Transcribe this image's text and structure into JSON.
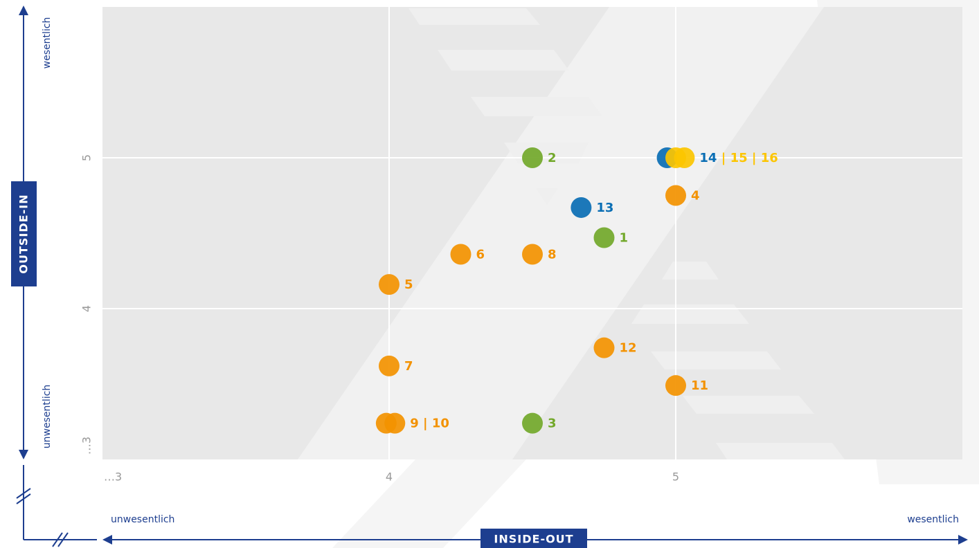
{
  "chart_data": {
    "type": "scatter",
    "x_label": "INSIDE-OUT",
    "y_label": "OUTSIDE-IN",
    "x_low": "unwesentlich",
    "x_high": "wesentlich",
    "y_low": "unwesentlich",
    "y_high": "wesentlich",
    "xlim": [
      3,
      6
    ],
    "ylim": [
      3,
      6
    ],
    "xticks": [
      {
        "value": 3,
        "label": "…3"
      },
      4,
      5
    ],
    "yticks": [
      {
        "value": 3,
        "label": "…3"
      },
      4,
      5
    ],
    "grid": true,
    "groups": [
      {
        "label_parts": [
          {
            "text": "1",
            "color": "#72a82a"
          }
        ],
        "points": [
          {
            "x": 4.75,
            "y": 4.47,
            "color": "#72a82a"
          }
        ]
      },
      {
        "label_parts": [
          {
            "text": "2",
            "color": "#72a82a"
          }
        ],
        "points": [
          {
            "x": 4.5,
            "y": 5.0,
            "color": "#72a82a"
          }
        ]
      },
      {
        "label_parts": [
          {
            "text": "3",
            "color": "#72a82a"
          }
        ],
        "points": [
          {
            "x": 4.5,
            "y": 3.24,
            "color": "#72a82a"
          }
        ]
      },
      {
        "label_parts": [
          {
            "text": "4",
            "color": "#f39200"
          }
        ],
        "points": [
          {
            "x": 5.0,
            "y": 4.75,
            "color": "#f39200"
          }
        ]
      },
      {
        "label_parts": [
          {
            "text": "5",
            "color": "#f39200"
          }
        ],
        "points": [
          {
            "x": 4.0,
            "y": 4.16,
            "color": "#f39200"
          }
        ]
      },
      {
        "label_parts": [
          {
            "text": "6",
            "color": "#f39200"
          }
        ],
        "points": [
          {
            "x": 4.25,
            "y": 4.36,
            "color": "#f39200"
          }
        ]
      },
      {
        "label_parts": [
          {
            "text": "7",
            "color": "#f39200"
          }
        ],
        "points": [
          {
            "x": 4.0,
            "y": 3.62,
            "color": "#f39200"
          }
        ]
      },
      {
        "label_parts": [
          {
            "text": "8",
            "color": "#f39200"
          }
        ],
        "points": [
          {
            "x": 4.5,
            "y": 4.36,
            "color": "#f39200"
          }
        ]
      },
      {
        "label_parts": [
          {
            "text": "9 | 10",
            "color": "#f39200"
          }
        ],
        "points": [
          {
            "x": 3.99,
            "y": 3.24,
            "color": "#f39200"
          },
          {
            "x": 4.02,
            "y": 3.24,
            "color": "#f39200"
          }
        ]
      },
      {
        "label_parts": [
          {
            "text": "11",
            "color": "#f39200"
          }
        ],
        "points": [
          {
            "x": 5.0,
            "y": 3.49,
            "color": "#f39200"
          }
        ]
      },
      {
        "label_parts": [
          {
            "text": "12",
            "color": "#f39200"
          }
        ],
        "points": [
          {
            "x": 4.75,
            "y": 3.74,
            "color": "#f39200"
          }
        ]
      },
      {
        "label_parts": [
          {
            "text": "13",
            "color": "#0a6eb4"
          }
        ],
        "points": [
          {
            "x": 4.67,
            "y": 4.67,
            "color": "#0a6eb4"
          }
        ]
      },
      {
        "label_parts": [
          {
            "text": "14",
            "color": "#0a6eb4"
          },
          {
            "text": " | 15 | 16",
            "color": "#fcc500"
          }
        ],
        "points": [
          {
            "x": 4.97,
            "y": 5.0,
            "color": "#0a6eb4"
          },
          {
            "x": 5.0,
            "y": 5.0,
            "color": "#fcc500"
          },
          {
            "x": 5.03,
            "y": 5.0,
            "color": "#fcc500"
          }
        ]
      }
    ]
  }
}
